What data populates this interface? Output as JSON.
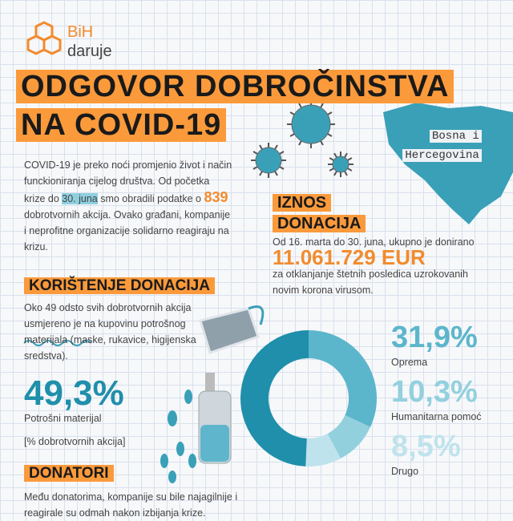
{
  "brand": {
    "line1": "BiH",
    "line2": "daruje"
  },
  "title": {
    "line1": "ODGOVOR DOBROČINSTVA",
    "line2": "NA COVID-19"
  },
  "intro": [
    "COVID-19 je preko noći promjenio život i način funckioniranja cijelog društva. Od početka krize do ",
    "30. juna",
    " smo obradili podatke o ",
    "839",
    " dobrotvornih akcija. Ovako građani, kompanije i neprofitne organizacije solidarno reagiraju na krizu."
  ],
  "map_label": [
    "Bosna i",
    "Hercegovina"
  ],
  "amount": {
    "heading1": "IZNOS",
    "heading2": "DONACIJA",
    "lead": "Od 16. marta do 30. juna, ukupno je donirano",
    "total": "11.061.729 EUR",
    "note": "za otklanjanje štetnih posledica uzrokovanih novim korona virusom."
  },
  "usage": {
    "heading": "KORIŠTENJE DONACIJA",
    "text": "Oko 49 odsto svih dobrotvornih akcija usmjereno je na kupovinu potrošnog materijala (maske, rukavice, higijenska sredstva).",
    "footnote": "[% dobrotvornih akcija]",
    "items": [
      {
        "label": "Potrošni materijal",
        "value": 49.3,
        "value_label": "49,3%",
        "color": "#1f8fab"
      },
      {
        "label": "Oprema",
        "value": 31.9,
        "value_label": "31,9%",
        "color": "#5cb6cb"
      },
      {
        "label": "Humanitarna pomoć",
        "value": 10.3,
        "value_label": "10,3%",
        "color": "#93d0de"
      },
      {
        "label": "Drugo",
        "value": 8.5,
        "value_label": "8,5%",
        "color": "#bfe3ec"
      }
    ]
  },
  "donors": {
    "heading": "DONATORI",
    "text": "Među donatorima, kompanije su bile najagilnije i reagirale su odmah nakon izbijanja krize."
  }
}
